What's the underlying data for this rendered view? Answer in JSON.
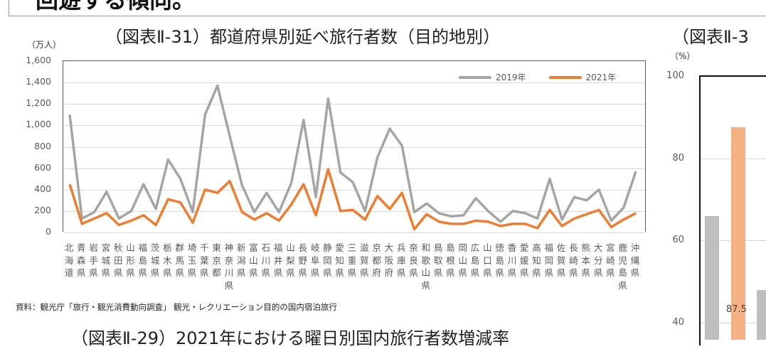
{
  "page": {
    "top_heading": "回遊する傾向。",
    "source_note": "資料：観光庁「旅行・観光消費動向調査」 観光・レクリエーション目的の国内宿泊旅行",
    "bottom_title": "（図表Ⅱ-29）2021年における曜日別国内旅行者数増減率"
  },
  "main_chart": {
    "title": "（図表Ⅱ-31）都道府県別延べ旅行者数（目的地別）",
    "unit": "（万人）",
    "y_ticks": [
      "1,600",
      "1,400",
      "1,200",
      "1,000",
      "800",
      "600",
      "400",
      "200",
      "0"
    ],
    "legend": [
      {
        "label": "2019年",
        "color": "#a5a5a5"
      },
      {
        "label": "2021年",
        "color": "#ed7d31"
      }
    ]
  },
  "right_chart": {
    "title": "（図表Ⅱ-3",
    "unit": "（%）",
    "y_ticks": [
      "100",
      "80",
      "60",
      "40"
    ],
    "bar_label": "87.5",
    "bars": [
      {
        "value": 66,
        "color": "#bfbfbf"
      },
      {
        "value": 87.5,
        "color": "#f4b183"
      },
      {
        "value": 48,
        "color": "#bfbfbf"
      }
    ]
  },
  "chart_data": [
    {
      "type": "line",
      "title": "（図表Ⅱ-31）都道府県別延べ旅行者数（目的地別）",
      "xlabel": "",
      "ylabel": "（万人）",
      "ylim": [
        0,
        1600
      ],
      "grid": true,
      "legend_position": "top-right",
      "categories": [
        "北海道",
        "青森県",
        "岩手県",
        "宮城県",
        "秋田県",
        "山形県",
        "福島県",
        "茨城県",
        "栃木県",
        "群馬県",
        "埼玉県",
        "千葉県",
        "東京都",
        "神奈川県",
        "新潟県",
        "富山県",
        "石川県",
        "福井県",
        "山梨県",
        "長野県",
        "岐阜県",
        "静岡県",
        "愛知県",
        "三重県",
        "滋賀県",
        "京都府",
        "大阪府",
        "兵庫県",
        "奈良県",
        "和歌山県",
        "鳥取県",
        "島根県",
        "岡山県",
        "広島県",
        "山口県",
        "徳島県",
        "香川県",
        "愛媛県",
        "高知県",
        "福岡県",
        "佐賀県",
        "長崎県",
        "熊本県",
        "大分県",
        "宮崎県",
        "鹿児島県",
        "沖縄県"
      ],
      "series": [
        {
          "name": "2019年",
          "color": "#a5a5a5",
          "values": [
            1100,
            130,
            190,
            380,
            130,
            200,
            450,
            220,
            680,
            500,
            190,
            1100,
            1370,
            900,
            440,
            190,
            370,
            190,
            460,
            1050,
            330,
            1250,
            560,
            470,
            200,
            700,
            970,
            810,
            190,
            270,
            180,
            150,
            160,
            320,
            200,
            100,
            200,
            180,
            130,
            500,
            120,
            330,
            300,
            400,
            110,
            230,
            570
          ]
        },
        {
          "name": "2021年",
          "color": "#ed7d31",
          "values": [
            450,
            80,
            130,
            180,
            70,
            110,
            160,
            70,
            310,
            280,
            90,
            400,
            370,
            480,
            190,
            120,
            180,
            110,
            260,
            450,
            160,
            590,
            200,
            210,
            120,
            340,
            220,
            370,
            30,
            170,
            100,
            80,
            80,
            110,
            100,
            60,
            80,
            80,
            40,
            210,
            60,
            130,
            170,
            210,
            50,
            120,
            180
          ]
        }
      ]
    },
    {
      "type": "bar",
      "title": "（図表Ⅱ-3",
      "ylabel": "（%）",
      "ylim": [
        40,
        100
      ],
      "partial": true,
      "values": [
        66,
        87.5,
        48
      ],
      "annotations": [
        "87.5"
      ]
    }
  ]
}
